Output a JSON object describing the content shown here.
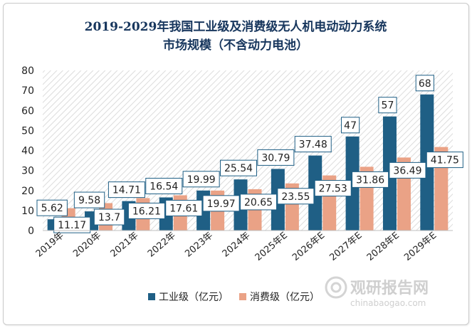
{
  "chart_data": {
    "type": "bar",
    "title_line1": "2019-2029年我国工业级及消费级无人机电动动力系统",
    "title_line2": "市场规模（不含动力电池）",
    "categories": [
      "2019年",
      "2020年",
      "2021年",
      "2022年",
      "2023年",
      "2024年",
      "2025年E",
      "2026年E",
      "2027年E",
      "2028年E",
      "2029年E"
    ],
    "series": [
      {
        "name": "工业级（亿元）",
        "color": "#1f5f85",
        "values": [
          5.62,
          9.58,
          14.71,
          16.54,
          19.99,
          25.54,
          30.79,
          37.48,
          47,
          57,
          68
        ],
        "labels": [
          "5.62",
          "9.58",
          "14.71",
          "16.54",
          "19.99",
          "25.54",
          "30.79",
          "37.48",
          "47",
          "57",
          "68"
        ]
      },
      {
        "name": "消费级（亿元）",
        "color": "#eaa286",
        "values": [
          11.17,
          13.7,
          16.21,
          17.61,
          19.97,
          20.65,
          23.55,
          27.53,
          31.86,
          36.49,
          41.75
        ],
        "labels": [
          "11.17",
          "13.7",
          "16.21",
          "17.61",
          "19.97",
          "20.65",
          "23.55",
          "27.53",
          "31.86",
          "36.49",
          "41.75"
        ]
      }
    ],
    "ylim": [
      0,
      80
    ],
    "yticks": [
      0,
      10,
      20,
      30,
      40,
      50,
      60,
      70,
      80
    ],
    "ytick_labels": [
      "0",
      "10",
      "20",
      "30",
      "40",
      "50",
      "60",
      "70",
      "80"
    ],
    "legend_position": "bottom-center",
    "xlabel": "",
    "ylabel": ""
  },
  "watermark": {
    "cn": "观研报告网",
    "en": "chinabaogao.com"
  }
}
